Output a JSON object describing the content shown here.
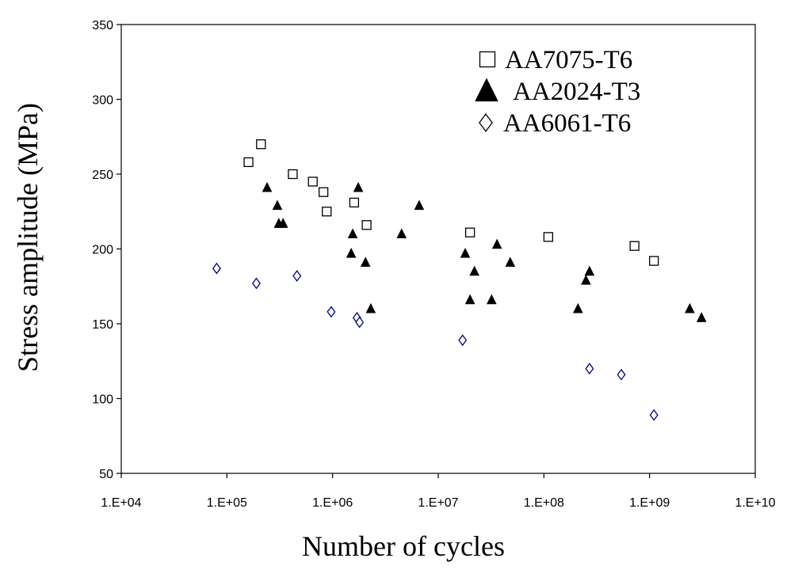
{
  "chart_data": {
    "type": "scatter",
    "title": "",
    "xlabel": "Number of cycles",
    "ylabel": "Stress amplitude (MPa)",
    "x_scale": "log",
    "xlim": [
      10000,
      10000000000
    ],
    "ylim": [
      50,
      350
    ],
    "x_tick_labels": [
      "1.E+04",
      "1.E+05",
      "1.E+06",
      "1.E+07",
      "1.E+08",
      "1.E+09",
      "1.E+10"
    ],
    "y_ticks": [
      50,
      100,
      150,
      200,
      250,
      300,
      350
    ],
    "grid": false,
    "legend_position": "top-right",
    "series": [
      {
        "name": "AA7075-T6",
        "marker": "square-open",
        "color": "#000000",
        "points": [
          [
            160000,
            258
          ],
          [
            210000,
            270
          ],
          [
            420000,
            250
          ],
          [
            650000,
            245
          ],
          [
            820000,
            238
          ],
          [
            880000,
            225
          ],
          [
            1600000,
            231
          ],
          [
            2100000,
            216
          ],
          [
            20000000,
            211
          ],
          [
            110000000,
            208
          ],
          [
            720000000,
            202
          ],
          [
            1100000000,
            192
          ]
        ]
      },
      {
        "name": "AA2024-T3",
        "marker": "triangle-filled",
        "color": "#000000",
        "points": [
          [
            240000,
            241
          ],
          [
            300000,
            229
          ],
          [
            310000,
            217
          ],
          [
            340000,
            217
          ],
          [
            1500000,
            197
          ],
          [
            1550000,
            210
          ],
          [
            1750000,
            241
          ],
          [
            2050000,
            191
          ],
          [
            2300000,
            160
          ],
          [
            4500000,
            210
          ],
          [
            6600000,
            229
          ],
          [
            18000000,
            197
          ],
          [
            20000000,
            166
          ],
          [
            22000000,
            185
          ],
          [
            32000000,
            166
          ],
          [
            36000000,
            203
          ],
          [
            48000000,
            191
          ],
          [
            210000000,
            160
          ],
          [
            250000000,
            179
          ],
          [
            270000000,
            185
          ],
          [
            2400000000,
            160
          ],
          [
            3100000000,
            154
          ]
        ]
      },
      {
        "name": "AA6061-T6",
        "marker": "diamond-open",
        "color": "#000080",
        "points": [
          [
            80000,
            187
          ],
          [
            190000,
            177
          ],
          [
            460000,
            182
          ],
          [
            970000,
            158
          ],
          [
            1700000,
            154
          ],
          [
            1800000,
            151
          ],
          [
            17000000,
            139
          ],
          [
            270000000,
            120
          ],
          [
            540000000,
            116
          ],
          [
            1100000000,
            89
          ]
        ]
      }
    ]
  }
}
